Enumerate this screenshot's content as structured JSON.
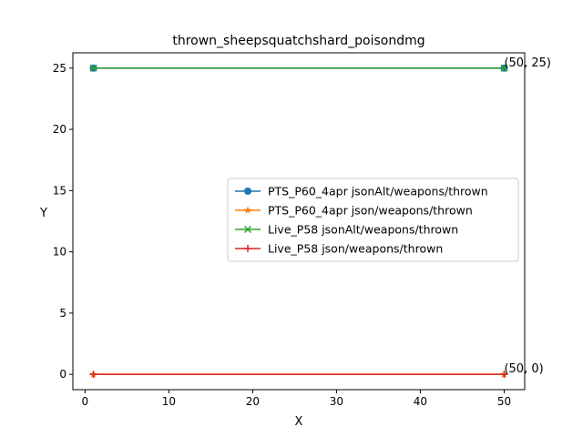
{
  "chart_data": {
    "type": "line",
    "title": "thrown_sheepsquatchshard_poisondmg",
    "xlabel": "X",
    "ylabel": "Y",
    "xlim": [
      -1.45,
      52.45
    ],
    "ylim": [
      -1.25,
      26.25
    ],
    "xticks": [
      0,
      10,
      20,
      30,
      40,
      50
    ],
    "yticks": [
      0,
      5,
      10,
      15,
      20,
      25
    ],
    "grid": false,
    "legend_position": "center-right",
    "series": [
      {
        "name": "PTS_P60_4apr jsonAlt/weapons/thrown",
        "color": "#1f77b4",
        "marker": "circle",
        "x": [
          1,
          50
        ],
        "y": [
          25,
          25
        ]
      },
      {
        "name": "PTS_P60_4apr json/weapons/thrown",
        "color": "#ff7f0e",
        "marker": "star",
        "x": [
          1,
          50
        ],
        "y": [
          0,
          0
        ]
      },
      {
        "name": "Live_P58 jsonAlt/weapons/thrown",
        "color": "#2ca02c",
        "marker": "x",
        "x": [
          1,
          50
        ],
        "y": [
          25,
          25
        ]
      },
      {
        "name": "Live_P58 json/weapons/thrown",
        "color": "#d62728",
        "marker": "plus",
        "x": [
          1,
          50
        ],
        "y": [
          0,
          0
        ]
      }
    ],
    "annotations": [
      {
        "text": "(50, 25)",
        "x": 50,
        "y": 25
      },
      {
        "text": "(50, 0)",
        "x": 50,
        "y": 0
      }
    ]
  }
}
